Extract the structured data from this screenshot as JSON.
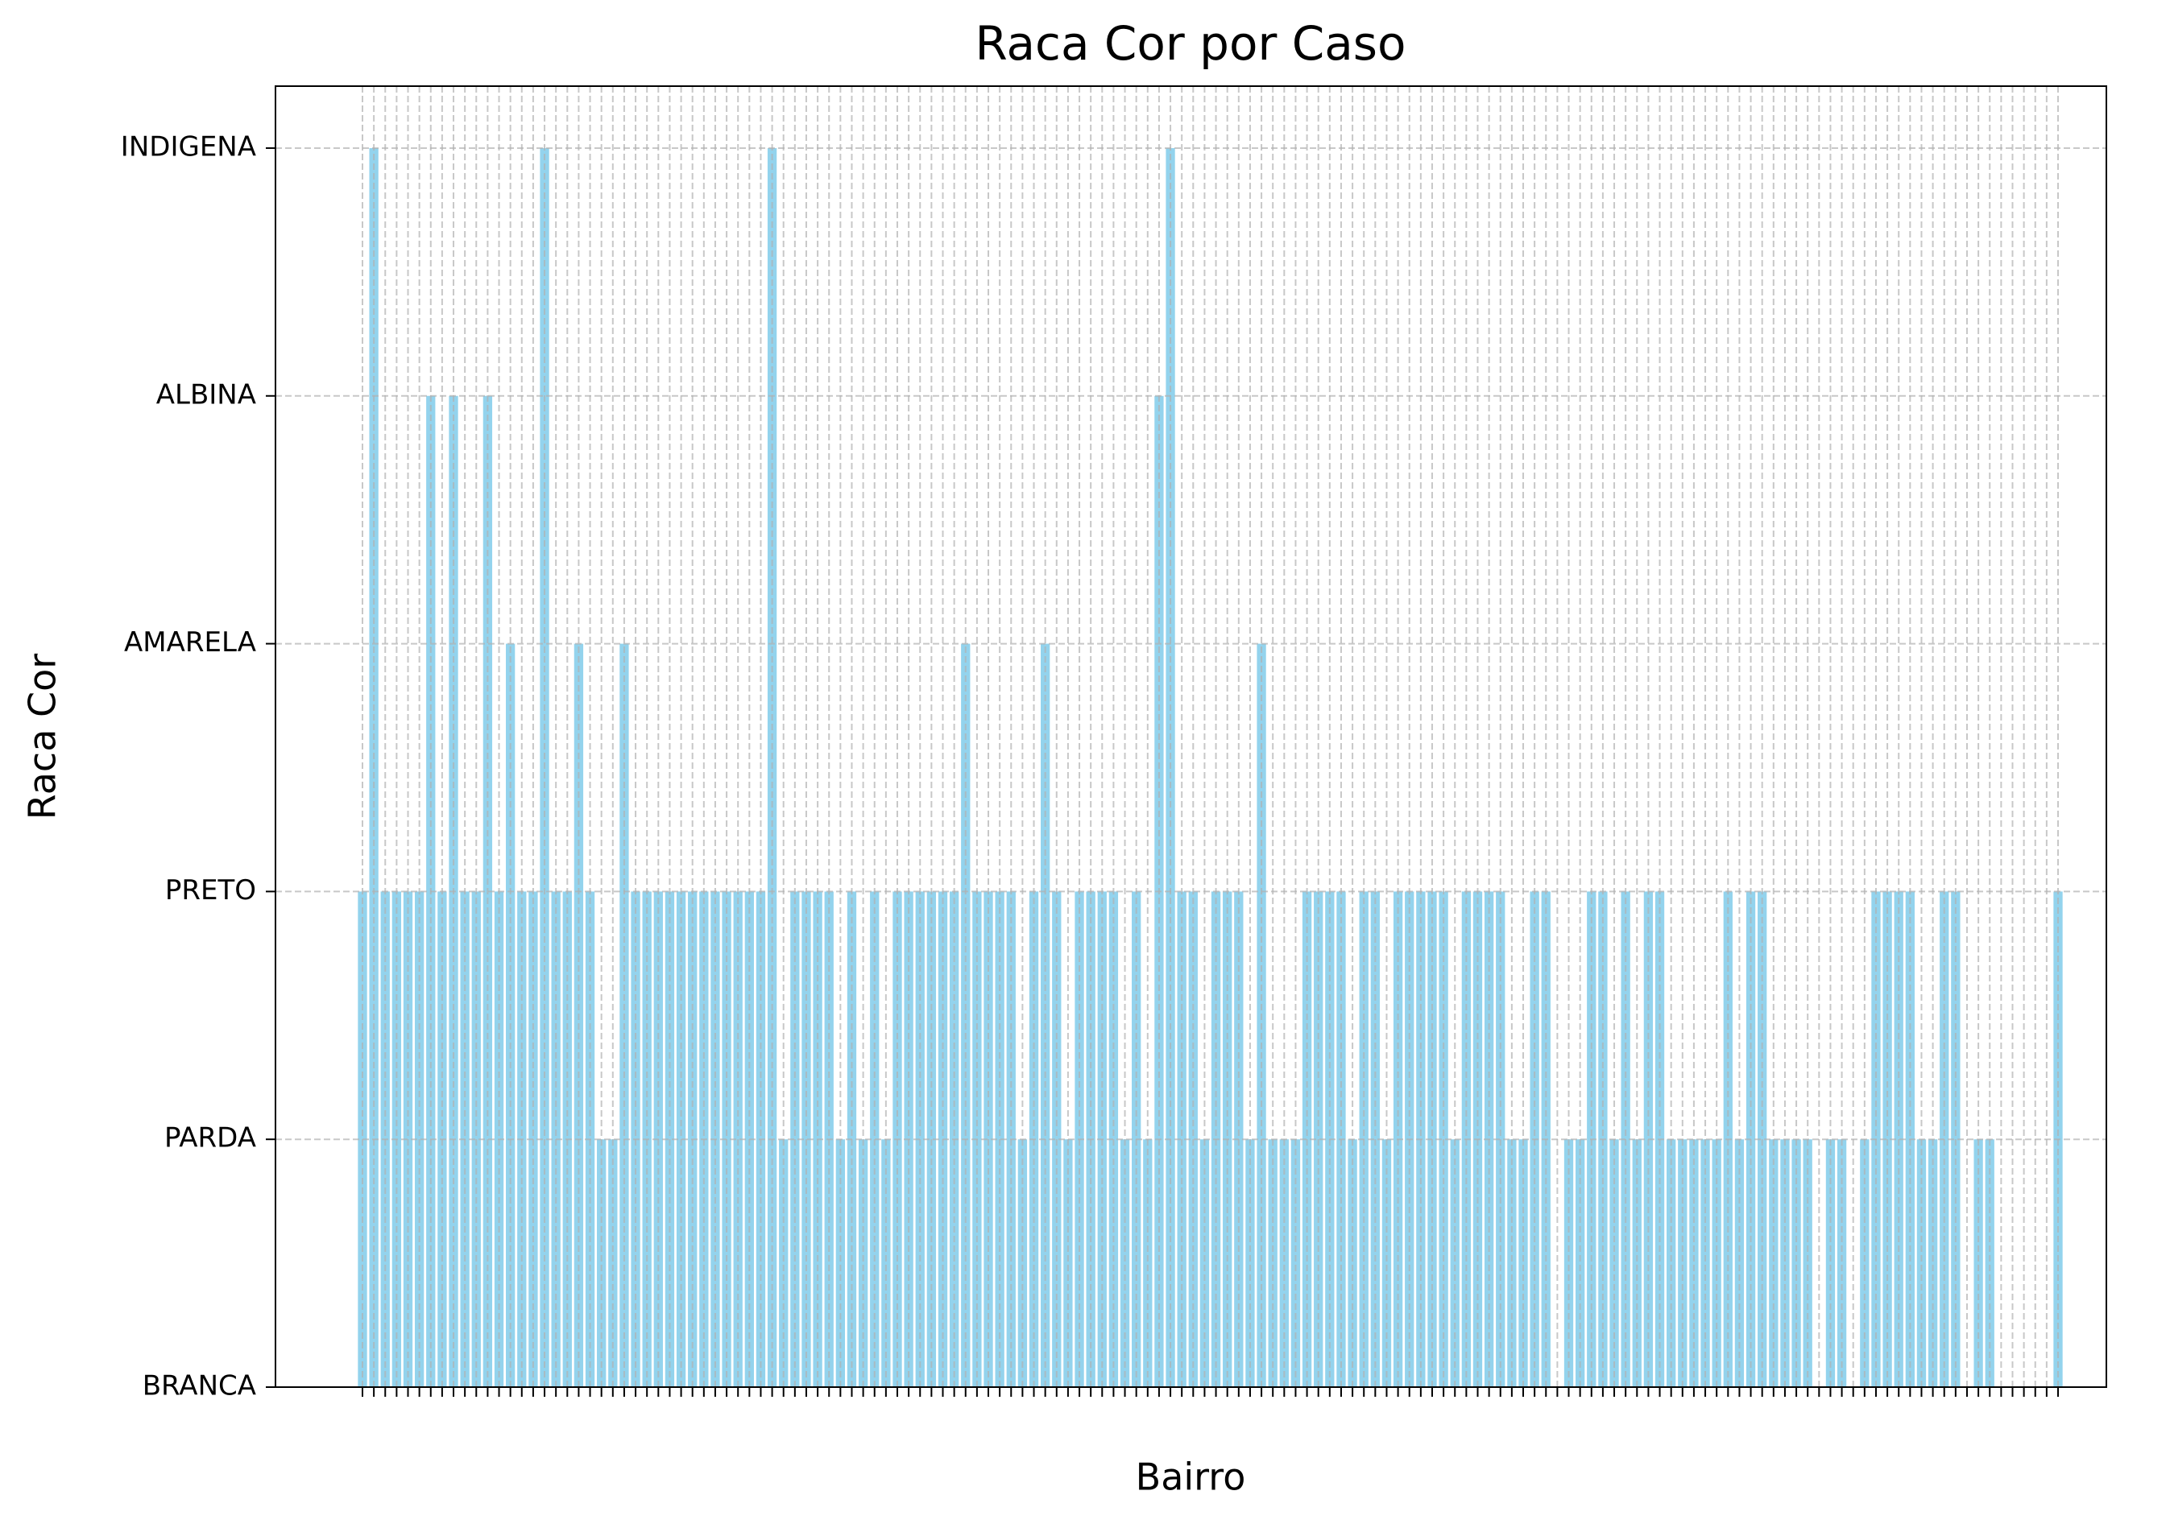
{
  "chart_data": {
    "type": "bar",
    "title": "Raca Cor por Caso",
    "xlabel": "Bairro",
    "ylabel": "Raca Cor",
    "color": "#87ceeb",
    "grid": true,
    "categories": [
      null,
      null,
      null,
      null,
      null,
      null,
      null,
      null,
      null,
      null,
      null,
      null,
      null,
      null,
      null,
      null,
      null,
      null,
      null,
      null,
      null,
      null,
      null,
      null,
      null,
      null,
      null,
      null,
      null,
      null,
      null,
      null,
      null,
      null,
      null,
      null,
      null,
      null,
      null,
      null,
      null,
      null,
      null,
      null,
      null,
      null,
      null,
      null,
      null,
      null,
      null,
      null,
      null,
      null,
      null,
      null,
      null,
      null,
      null,
      null,
      null,
      null,
      null,
      null,
      null,
      null,
      null,
      null,
      null,
      null,
      null,
      null,
      null,
      null,
      null,
      null,
      null,
      null,
      null,
      null,
      null,
      null,
      null,
      null,
      null,
      null,
      null,
      null,
      null,
      null,
      null,
      null,
      null,
      null,
      null,
      null,
      null,
      null,
      null,
      null,
      null,
      null,
      null,
      null,
      null,
      null,
      null,
      null,
      null,
      null,
      null,
      null,
      null,
      null,
      null,
      null,
      null,
      null,
      null,
      null,
      null,
      null,
      null,
      null,
      null,
      null,
      null,
      null,
      null,
      null,
      null,
      null,
      null,
      null,
      null,
      null,
      null,
      null,
      null,
      null,
      null,
      null,
      null,
      null,
      null,
      null,
      null,
      null,
      null,
      null
    ],
    "values": [
      2,
      5,
      2,
      2,
      2,
      2,
      4,
      2,
      4,
      2,
      2,
      4,
      2,
      3,
      2,
      2,
      5,
      2,
      2,
      3,
      2,
      1,
      1,
      3,
      2,
      2,
      2,
      2,
      2,
      2,
      2,
      2,
      2,
      2,
      2,
      2,
      5,
      1,
      2,
      2,
      2,
      2,
      1,
      2,
      1,
      2,
      1,
      2,
      2,
      2,
      2,
      2,
      2,
      3,
      2,
      2,
      2,
      2,
      1,
      2,
      3,
      2,
      1,
      2,
      2,
      2,
      2,
      1,
      2,
      1,
      4,
      5,
      2,
      2,
      1,
      2,
      2,
      2,
      1,
      3,
      1,
      1,
      1,
      2,
      2,
      2,
      2,
      1,
      2,
      2,
      1,
      2,
      2,
      2,
      2,
      2,
      1,
      2,
      2,
      2,
      2,
      1,
      1,
      2,
      2,
      0,
      1,
      1,
      2,
      2,
      1,
      2,
      1,
      2,
      2,
      1,
      1,
      1,
      1,
      1,
      2,
      1,
      2,
      2,
      1,
      1,
      1,
      1,
      0,
      1,
      1,
      0,
      1,
      2,
      2,
      2,
      2,
      1,
      1,
      2,
      2,
      0,
      1,
      1,
      0,
      0,
      0,
      0,
      0,
      2
    ],
    "ylim": [
      0,
      5.25
    ],
    "yticks": [
      {
        "value": 0,
        "label": "BRANCA"
      },
      {
        "value": 1,
        "label": "PARDA"
      },
      {
        "value": 2,
        "label": "PRETO"
      },
      {
        "value": 3,
        "label": "AMARELA"
      },
      {
        "value": 4,
        "label": "ALBINA"
      },
      {
        "value": 5,
        "label": "INDIGENA"
      }
    ]
  }
}
